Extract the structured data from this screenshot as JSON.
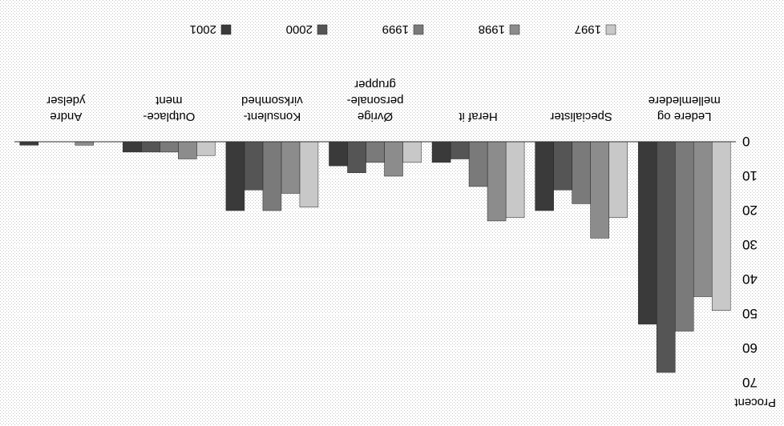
{
  "chart_data": {
    "type": "bar",
    "orientation": "vertical",
    "rendering": "rotated 180 degrees",
    "title": "",
    "xlabel": "",
    "ylabel": "Procent",
    "ylim": [
      0,
      70
    ],
    "yticks": [
      "0",
      "10",
      "20",
      "30",
      "40",
      "50",
      "60",
      "70"
    ],
    "grid": true,
    "legend_position": "top",
    "categories": [
      [
        "Ledere og",
        "mellemledere"
      ],
      [
        "Specialister"
      ],
      [
        "Heraf it"
      ],
      [
        "Øvrige",
        "personale-",
        "grupper"
      ],
      [
        "Konsulent-",
        "virksomhed"
      ],
      [
        "Outplace-",
        "ment"
      ],
      [
        "Andre",
        "ydelser"
      ]
    ],
    "series": [
      {
        "name": "1997",
        "color": "#c8c8c8",
        "values": [
          49,
          22,
          22,
          6,
          19,
          4,
          0
        ]
      },
      {
        "name": "1998",
        "color": "#8c8c8c",
        "values": [
          45,
          28,
          23,
          10,
          15,
          5,
          1
        ]
      },
      {
        "name": "1999",
        "color": "#7a7a7a",
        "values": [
          55,
          18,
          13,
          6,
          20,
          3,
          0
        ]
      },
      {
        "name": "2000",
        "color": "#555555",
        "values": [
          67,
          14,
          5,
          9,
          14,
          3,
          0
        ]
      },
      {
        "name": "2001",
        "color": "#3a3a3a",
        "values": [
          53,
          20,
          6,
          7,
          20,
          3,
          1
        ]
      }
    ]
  }
}
